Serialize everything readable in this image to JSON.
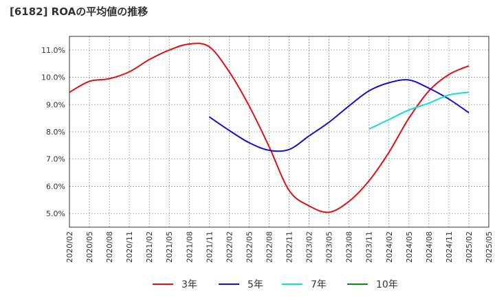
{
  "chart_data": {
    "type": "line",
    "title": "[6182]  ROAの平均値の推移",
    "xlabel": "",
    "ylabel": "",
    "ylim": [
      4.5,
      11.5
    ],
    "grid": true,
    "legend_position": "bottom",
    "y_ticks": [
      5.0,
      6.0,
      7.0,
      8.0,
      9.0,
      10.0,
      11.0
    ],
    "y_tick_labels": [
      "5.0%",
      "6.0%",
      "7.0%",
      "8.0%",
      "9.0%",
      "10.0%",
      "11.0%"
    ],
    "x_ticks": [
      "2020/02",
      "2020/05",
      "2020/08",
      "2020/11",
      "2021/02",
      "2021/05",
      "2021/08",
      "2021/11",
      "2022/02",
      "2022/05",
      "2022/08",
      "2022/11",
      "2023/02",
      "2023/05",
      "2023/08",
      "2023/11",
      "2024/02",
      "2024/05",
      "2024/08",
      "2024/11",
      "2025/02",
      "2025/05"
    ],
    "series": [
      {
        "name": "3年",
        "color": "#dd1111",
        "x": [
          "2020/02",
          "2020/05",
          "2020/08",
          "2020/11",
          "2021/02",
          "2021/05",
          "2021/08",
          "2021/11",
          "2022/02",
          "2022/05",
          "2022/08",
          "2022/11",
          "2023/02",
          "2023/05",
          "2023/08",
          "2023/11",
          "2024/02",
          "2024/05",
          "2024/08",
          "2024/11",
          "2025/02"
        ],
        "values": [
          9.45,
          9.85,
          9.95,
          10.2,
          10.65,
          11.0,
          11.22,
          11.12,
          10.2,
          8.95,
          7.45,
          5.85,
          5.28,
          5.05,
          5.45,
          6.2,
          7.25,
          8.5,
          9.5,
          10.1,
          10.42
        ]
      },
      {
        "name": "5年",
        "color": "#1111cc",
        "x": [
          "2021/11",
          "2022/02",
          "2022/05",
          "2022/08",
          "2022/11",
          "2023/02",
          "2023/05",
          "2023/08",
          "2023/11",
          "2024/02",
          "2024/05",
          "2024/08",
          "2024/11",
          "2025/02"
        ],
        "values": [
          8.55,
          8.05,
          7.6,
          7.32,
          7.35,
          7.85,
          8.35,
          8.95,
          9.5,
          9.8,
          9.9,
          9.6,
          9.2,
          8.7
        ]
      },
      {
        "name": "7年",
        "color": "#11dddd",
        "x": [
          "2023/11",
          "2024/02",
          "2024/05",
          "2024/08",
          "2024/11",
          "2025/02"
        ],
        "values": [
          8.1,
          8.45,
          8.8,
          9.05,
          9.35,
          9.45
        ]
      },
      {
        "name": "10年",
        "color": "#118811",
        "x": [],
        "values": []
      }
    ]
  }
}
